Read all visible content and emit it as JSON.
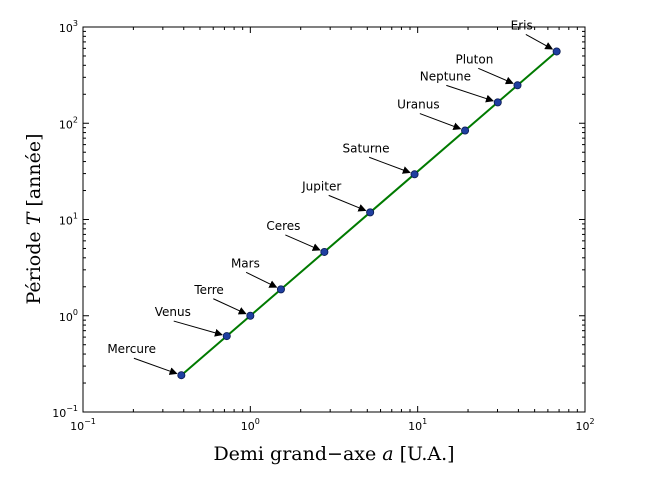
{
  "chart_data": {
    "type": "scatter",
    "xlabel": {
      "main": "Demi grand−axe ",
      "var": "a",
      "unit": " [U.A.]"
    },
    "ylabel": {
      "main": "Période ",
      "var": "T",
      "unit": " [année]"
    },
    "xscale": "log",
    "yscale": "log",
    "xlim": [
      0.1,
      100
    ],
    "ylim": [
      0.1,
      1000
    ],
    "xticks": [
      {
        "base": "10",
        "exp": "−1"
      },
      {
        "base": "10",
        "exp": "0"
      },
      {
        "base": "10",
        "exp": "1"
      },
      {
        "base": "10",
        "exp": "2"
      }
    ],
    "yticks": [
      {
        "base": "10",
        "exp": "−1"
      },
      {
        "base": "10",
        "exp": "0"
      },
      {
        "base": "10",
        "exp": "1"
      },
      {
        "base": "10",
        "exp": "2"
      },
      {
        "base": "10",
        "exp": "3"
      }
    ],
    "fit_line": {
      "x": [
        0.387,
        67.7
      ],
      "y": [
        0.241,
        557
      ],
      "color": "#007a00"
    },
    "marker_color": "#1f3fa0",
    "points": [
      {
        "name": "Mercure",
        "x": 0.387,
        "y": 0.241
      },
      {
        "name": "Venus",
        "x": 0.723,
        "y": 0.615
      },
      {
        "name": "Terre",
        "x": 1.0,
        "y": 1.0
      },
      {
        "name": "Mars",
        "x": 1.524,
        "y": 1.88
      },
      {
        "name": "Ceres",
        "x": 2.77,
        "y": 4.6
      },
      {
        "name": "Jupiter",
        "x": 5.2,
        "y": 11.86
      },
      {
        "name": "Saturne",
        "x": 9.58,
        "y": 29.5
      },
      {
        "name": "Uranus",
        "x": 19.2,
        "y": 84.0
      },
      {
        "name": "Neptune",
        "x": 30.1,
        "y": 164.8
      },
      {
        "name": "Pluton",
        "x": 39.5,
        "y": 248.0
      },
      {
        "name": "Eris",
        "x": 67.7,
        "y": 557.0
      }
    ]
  }
}
